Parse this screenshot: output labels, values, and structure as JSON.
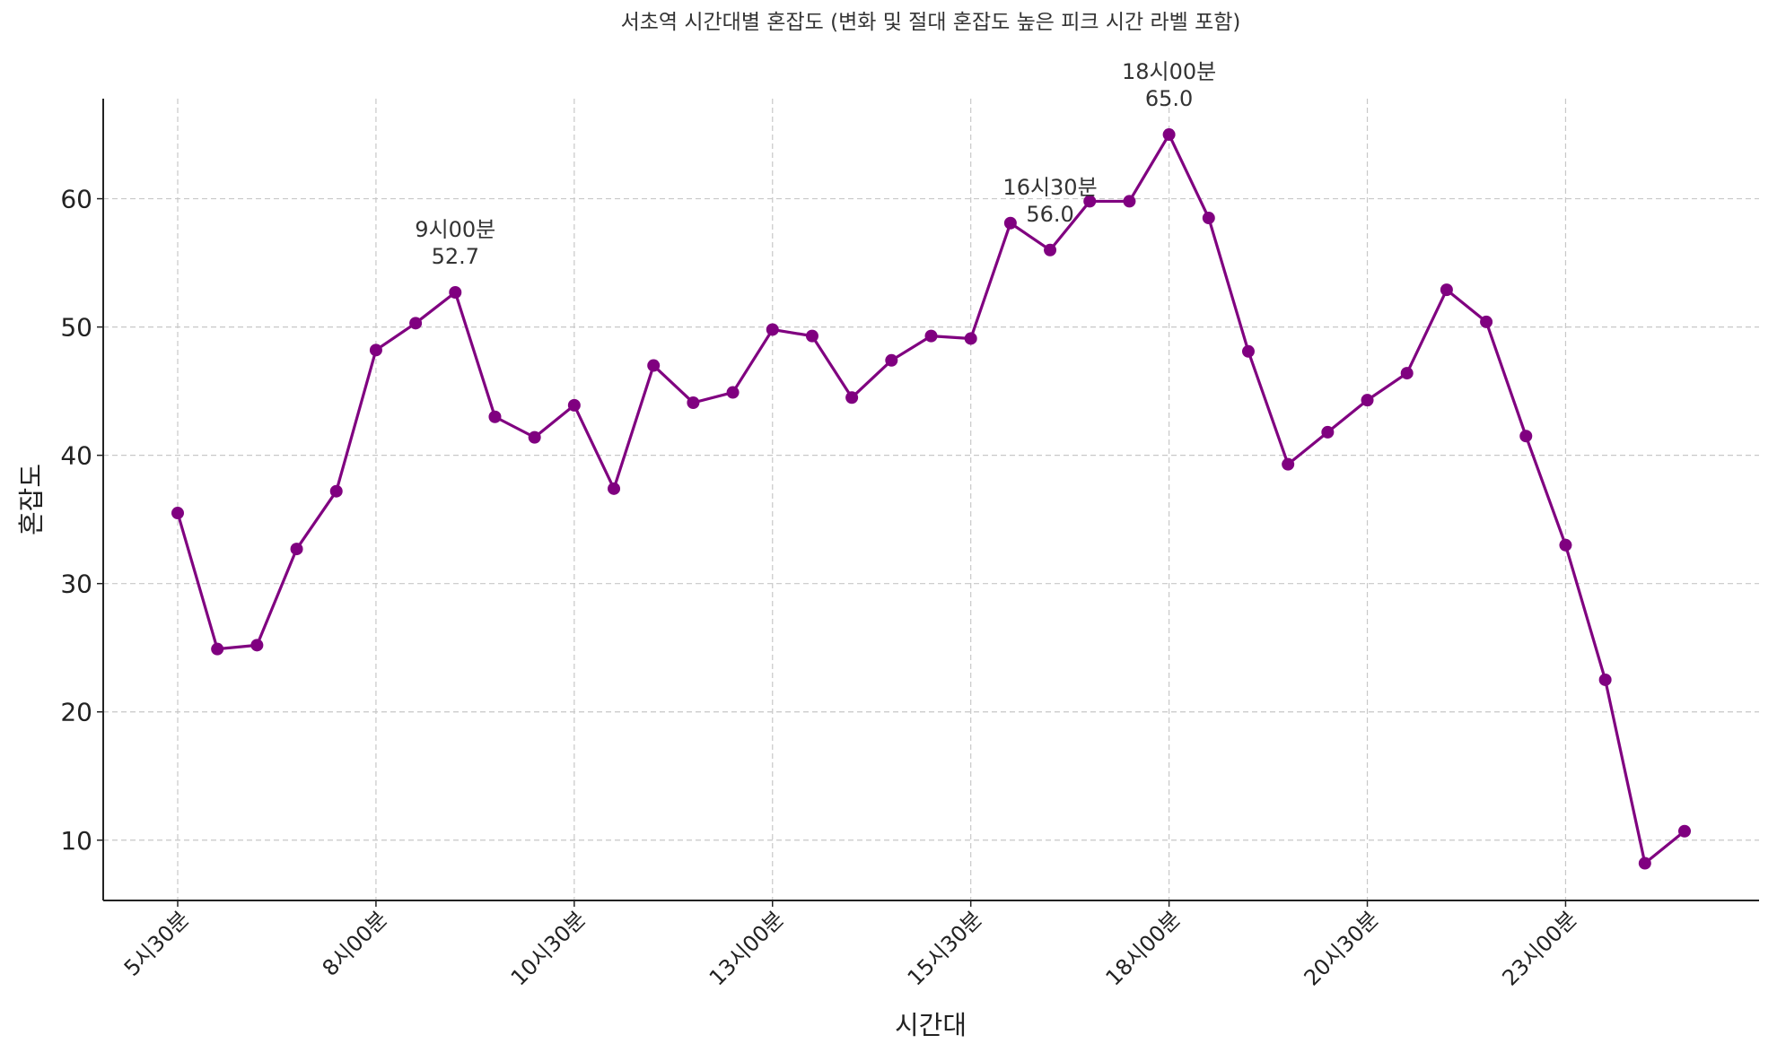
{
  "chart_data": {
    "type": "line",
    "title": "서초역 시간대별 혼잡도 (변화 및 절대 혼잡도 높은 피크 시간 라벨 포함)",
    "xlabel": "시간대",
    "ylabel": "혼잡도",
    "x": [
      "5시30분",
      "6시00분",
      "6시30분",
      "7시00분",
      "7시30분",
      "8시00분",
      "8시30분",
      "9시00분",
      "9시30분",
      "10시00분",
      "10시30분",
      "11시00분",
      "11시30분",
      "12시00분",
      "12시30분",
      "13시00분",
      "13시30분",
      "14시00분",
      "14시30분",
      "15시00분",
      "15시30분",
      "16시00분",
      "16시30분",
      "17시00분",
      "17시30분",
      "18시00분",
      "18시30분",
      "19시00분",
      "19시30분",
      "20시00분",
      "20시30분",
      "21시00분",
      "21시30분",
      "22시00분",
      "22시30분",
      "23시00분",
      "23시30분",
      "00시00분",
      "00시30분"
    ],
    "x_ticks": [
      "5시30분",
      "8시00분",
      "10시30분",
      "13시00분",
      "15시30분",
      "18시00분",
      "20시30분",
      "23시00분"
    ],
    "y_ticks": [
      10,
      20,
      30,
      40,
      50,
      60
    ],
    "ylim": [
      5.3,
      67.8
    ],
    "grid": true,
    "series": [
      {
        "color": "#800080",
        "marker": "circle",
        "values": [
          35.5,
          24.9,
          25.2,
          32.7,
          37.2,
          48.2,
          50.3,
          52.7,
          43.0,
          41.4,
          43.9,
          37.4,
          47.0,
          44.1,
          44.9,
          49.8,
          49.3,
          44.5,
          47.4,
          49.3,
          49.1,
          58.1,
          56.0,
          59.8,
          59.8,
          65.0,
          58.5,
          48.1,
          39.3,
          41.8,
          44.3,
          46.4,
          52.9,
          50.4,
          41.5,
          33.0,
          22.5,
          8.2,
          10.7
        ]
      }
    ],
    "annotations": [
      {
        "index": 7,
        "label": "9시00분",
        "value": "52.7"
      },
      {
        "index": 22,
        "label": "16시30분",
        "value": "56.0"
      },
      {
        "index": 25,
        "label": "18시00분",
        "value": "65.0"
      }
    ]
  }
}
